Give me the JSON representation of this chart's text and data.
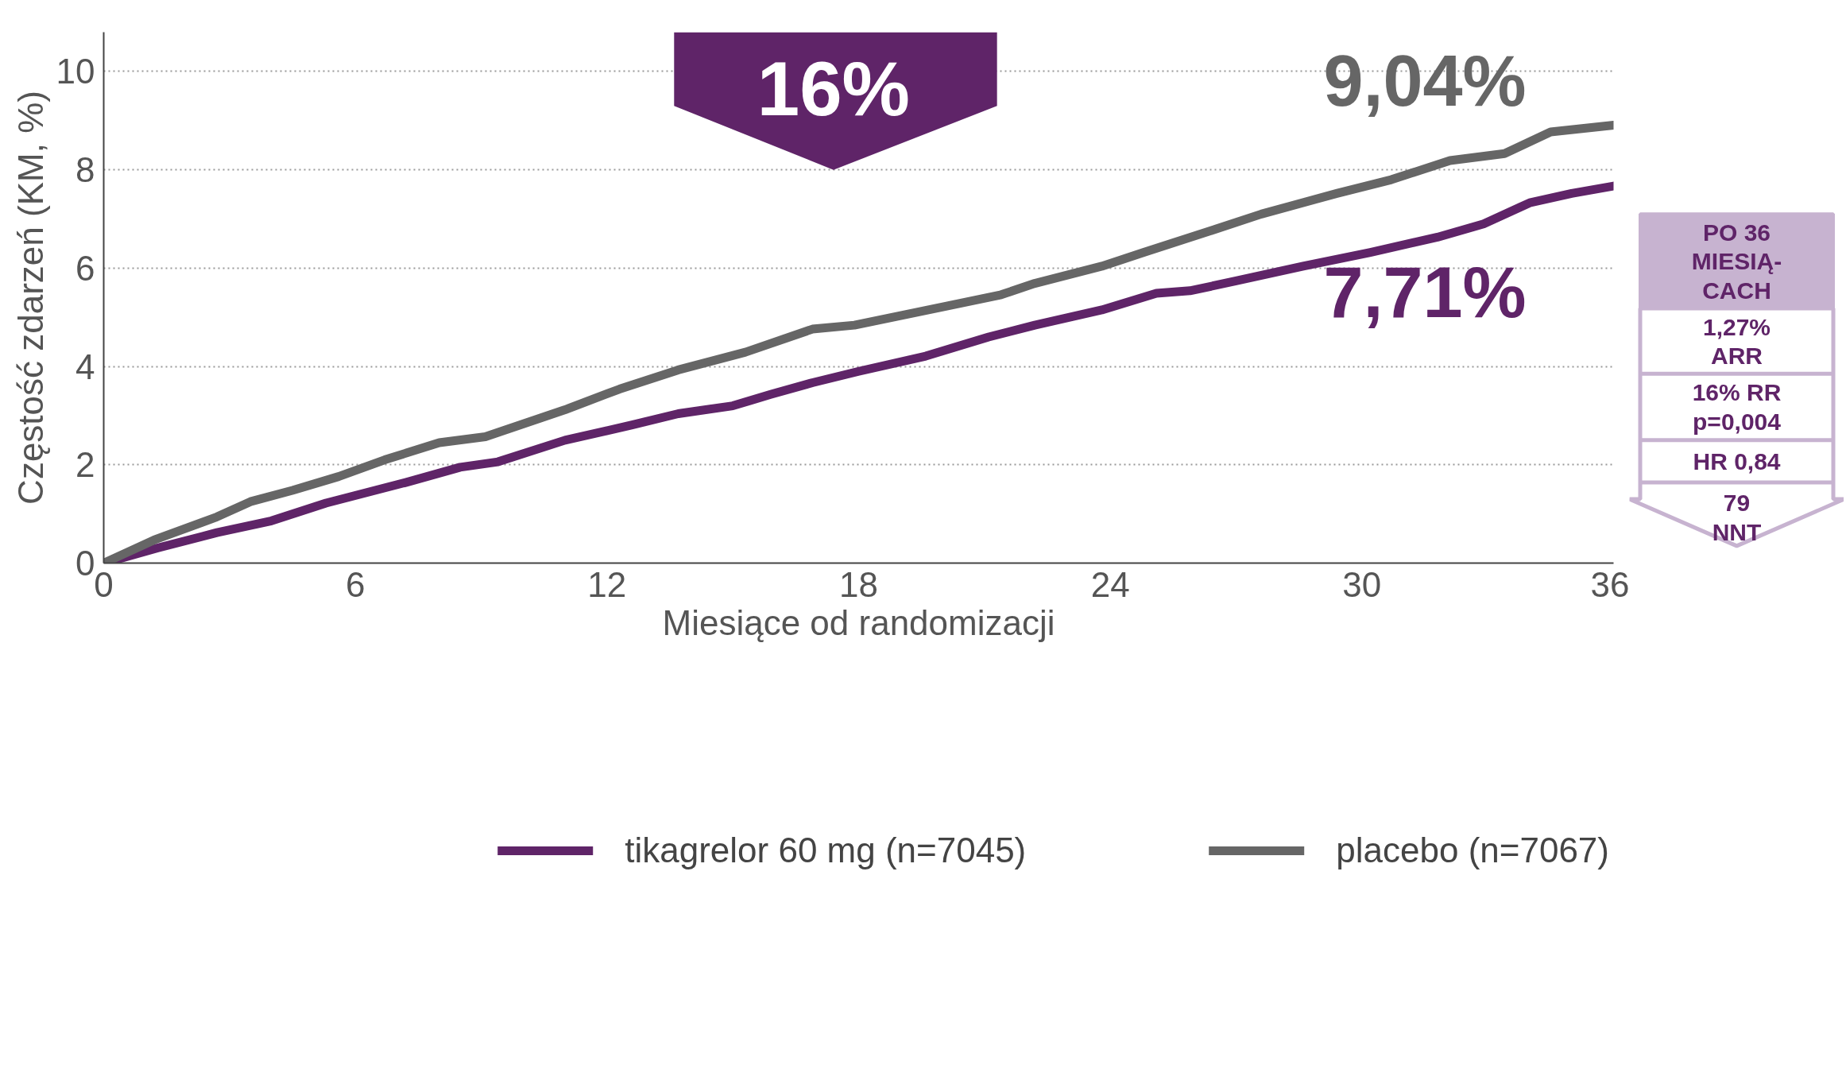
{
  "chart_data": {
    "type": "line",
    "xlabel": "Miesiące od randomizacji",
    "ylabel": "Częstość zdarzeń (KM, %)",
    "xlim": [
      0,
      36
    ],
    "ylim": [
      0,
      10.8
    ],
    "xticks": [
      0,
      6,
      12,
      18,
      24,
      30,
      36
    ],
    "yticks": [
      0,
      2,
      4,
      6,
      8,
      10
    ],
    "grid": "y",
    "legend": "bottom",
    "line_style": "solid",
    "marker": "none",
    "series": [
      {
        "name": "tikagrelor 60 mg (n=7045)",
        "color": "#5f2468",
        "x": [
          0,
          1.3,
          2.7,
          4.0,
          5.3,
          7.2,
          8.5,
          9.4,
          11,
          12.6,
          13.7,
          15,
          15.9,
          16.9,
          18,
          19.6,
          21.1,
          22.2,
          23.8,
          25.1,
          25.9,
          27,
          28.6,
          30.2,
          31.8,
          32.9,
          34,
          35,
          36
        ],
        "values": [
          0,
          0.31,
          0.62,
          0.86,
          1.22,
          1.64,
          1.95,
          2.06,
          2.5,
          2.81,
          3.04,
          3.2,
          3.43,
          3.67,
          3.9,
          4.21,
          4.6,
          4.84,
          5.15,
          5.49,
          5.54,
          5.74,
          6.04,
          6.32,
          6.63,
          6.9,
          7.33,
          7.52,
          7.67
        ]
      },
      {
        "name": "placebo (n=7067)",
        "color": "#666666",
        "x": [
          0,
          1.2,
          2.7,
          3.5,
          4.5,
          5.6,
          6.7,
          8.0,
          9.1,
          11,
          12.3,
          13.7,
          15.3,
          16.9,
          17.9,
          20.1,
          21.4,
          22.2,
          23.8,
          24.8,
          26.5,
          27.6,
          29.4,
          30.7,
          32.1,
          33.4,
          34.5,
          36
        ],
        "values": [
          0,
          0.47,
          0.94,
          1.25,
          1.48,
          1.76,
          2.1,
          2.45,
          2.57,
          3.12,
          3.54,
          3.93,
          4.29,
          4.76,
          4.84,
          5.23,
          5.46,
          5.69,
          6.04,
          6.32,
          6.79,
          7.1,
          7.52,
          7.8,
          8.19,
          8.33,
          8.77,
          8.91
        ]
      }
    ],
    "annotations": [
      "16%",
      "9,04%",
      "7,71%",
      "PO 36\nMIESIĄ-\nCACH",
      "1,27%\nARR",
      "16% RR\np=0,004",
      "HR 0,84",
      "79\nNNT"
    ]
  }
}
